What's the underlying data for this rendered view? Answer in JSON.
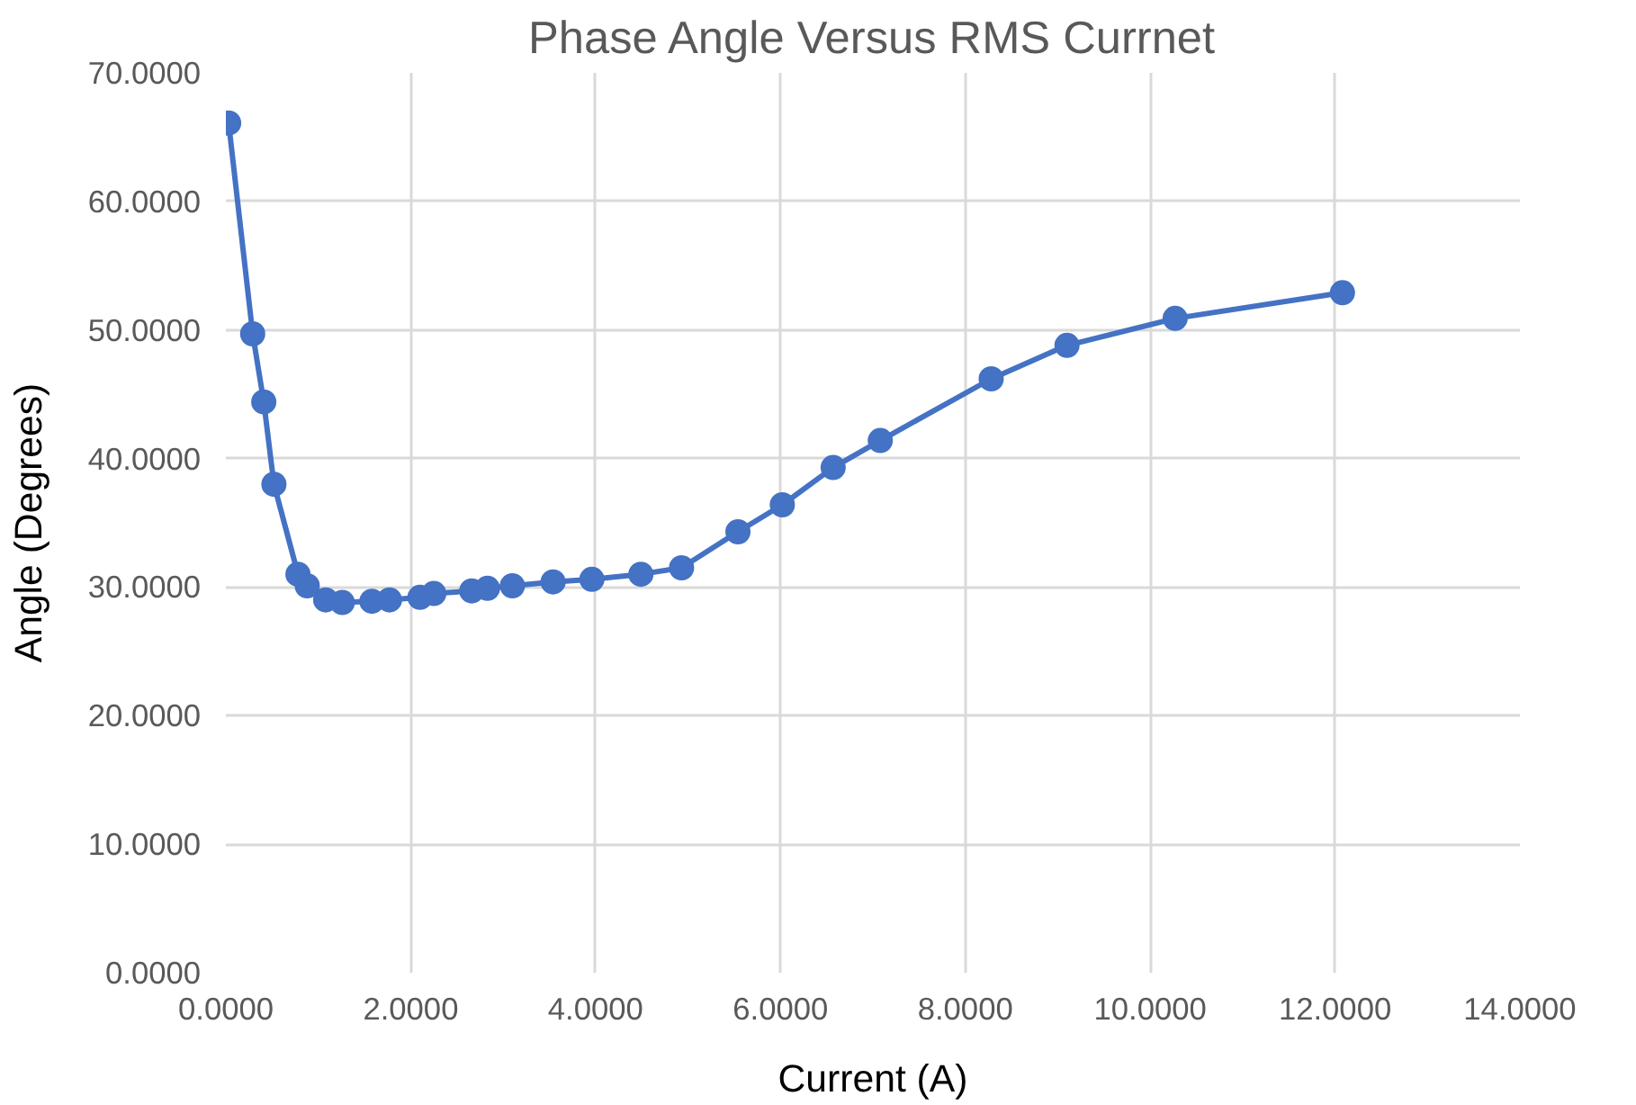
{
  "chart_data": {
    "type": "line",
    "title": "Phase Angle Versus RMS Currnet",
    "xlabel": "Current (A)",
    "ylabel": "Angle (Degrees)",
    "x": [
      0.03,
      0.29,
      0.41,
      0.52,
      0.78,
      0.88,
      1.08,
      1.26,
      1.58,
      1.77,
      2.1,
      2.25,
      2.66,
      2.83,
      3.1,
      3.54,
      3.96,
      4.49,
      4.93,
      5.54,
      6.02,
      6.57,
      7.08,
      8.28,
      9.1,
      10.27,
      12.08
    ],
    "series": [
      {
        "color": "#4472c4",
        "values": [
          66.1,
          49.7,
          44.4,
          38.0,
          31.0,
          30.1,
          29.0,
          28.8,
          28.9,
          29.0,
          29.2,
          29.5,
          29.7,
          29.9,
          30.1,
          30.4,
          30.6,
          31.0,
          31.5,
          34.3,
          36.4,
          39.3,
          41.4,
          46.2,
          48.8,
          50.9,
          52.9
        ]
      }
    ],
    "xlim": [
      0,
      14
    ],
    "ylim": [
      0,
      70
    ],
    "xticks": [
      {
        "value": 0,
        "label": "0.0000"
      },
      {
        "value": 2,
        "label": "2.0000"
      },
      {
        "value": 4,
        "label": "4.0000"
      },
      {
        "value": 6,
        "label": "6.0000"
      },
      {
        "value": 8,
        "label": "8.0000"
      },
      {
        "value": 10,
        "label": "10.0000"
      },
      {
        "value": 12,
        "label": "12.0000"
      },
      {
        "value": 14,
        "label": "14.0000"
      }
    ],
    "yticks": [
      {
        "value": 0,
        "label": "0.0000"
      },
      {
        "value": 10,
        "label": "10.0000"
      },
      {
        "value": 20,
        "label": "20.0000"
      },
      {
        "value": 30,
        "label": "30.0000"
      },
      {
        "value": 40,
        "label": "40.0000"
      },
      {
        "value": 50,
        "label": "50.0000"
      },
      {
        "value": 60,
        "label": "60.0000"
      },
      {
        "value": 70,
        "label": "70.0000"
      }
    ],
    "grid": true,
    "marker": "circle",
    "line_style": "solid"
  }
}
